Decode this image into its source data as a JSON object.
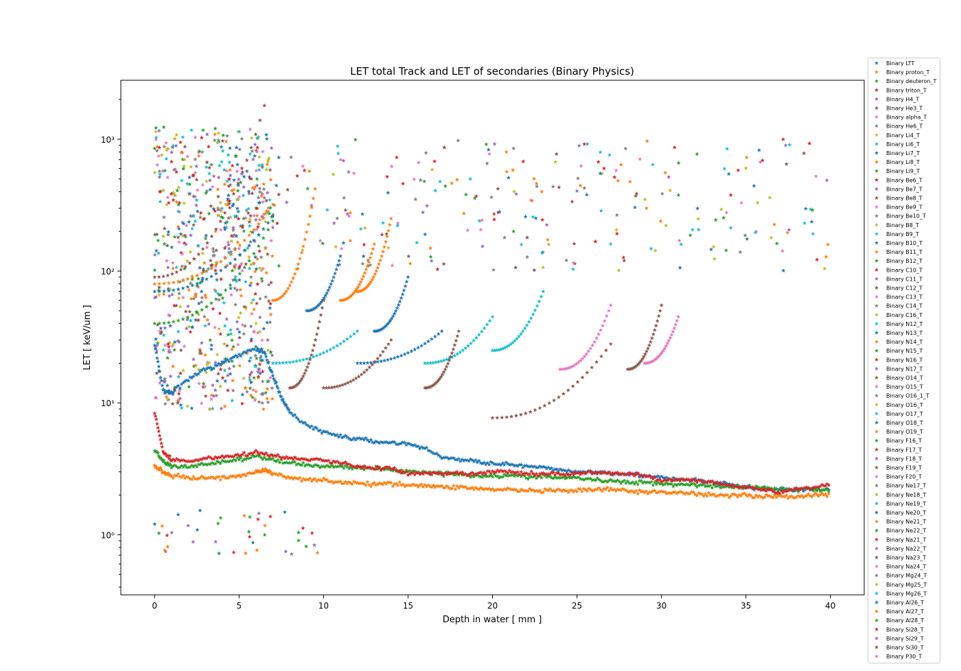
{
  "chart_data": {
    "type": "scatter",
    "title": "LET total Track and LET of secondaries (Binary Physics)",
    "xlabel": "Depth in water [ mm ]",
    "ylabel": "LET [ keV/um ]",
    "xlim": [
      -2,
      42
    ],
    "ylim": [
      0.35,
      2800
    ],
    "yscale": "log",
    "grid": false,
    "legend_position": "outside-right",
    "marker": "star",
    "x_ticks": [
      0,
      5,
      10,
      15,
      20,
      25,
      30,
      35,
      40
    ],
    "x_tick_labels": [
      "0",
      "5",
      "10",
      "15",
      "20",
      "25",
      "30",
      "35",
      "40"
    ],
    "y_ticks": [
      1,
      10,
      100,
      1000
    ],
    "y_tick_labels": [
      "10⁰",
      "10¹",
      "10²",
      "10³"
    ],
    "palette": [
      "#1f77b4",
      "#ff7f0e",
      "#2ca02c",
      "#d62728",
      "#9467bd",
      "#8c564b",
      "#e377c2",
      "#7f7f7f",
      "#bcbd22",
      "#17becf"
    ],
    "legend_entries": [
      "Binary LTT",
      "Binary proton_T",
      "Binary deuteron_T",
      "Binary triton_T",
      "Binary H4_T",
      "Binary He3_T",
      "Binary alpha_T",
      "Binary He6_T",
      "Binary Li4_T",
      "Binary Li6_T",
      "Binary Li7_T",
      "Binary Li8_T",
      "Binary Li9_T",
      "Binary Be6_T",
      "Binary Be7_T",
      "Binary Be8_T",
      "Binary Be9_T",
      "Binary Be10_T",
      "Binary B8_T",
      "Binary B9_T",
      "Binary B10_T",
      "Binary B11_T",
      "Binary B12_T",
      "Binary C10_T",
      "Binary C11_T",
      "Binary C12_T",
      "Binary C13_T",
      "Binary C14_T",
      "Binary C16_T",
      "Binary N12_T",
      "Binary N13_T",
      "Binary N14_T",
      "Binary N15_T",
      "Binary N16_T",
      "Binary N17_T",
      "Binary O14_T",
      "Binary O15_T",
      "Binary O16_1_T",
      "Binary O16_T",
      "Binary O17_T",
      "Binary O18_T",
      "Binary O19_T",
      "Binary F16_T",
      "Binary F17_T",
      "Binary F18_T",
      "Binary F19_T",
      "Binary F20_T",
      "Binary Ne17_T",
      "Binary Ne18_T",
      "Binary Ne19_T",
      "Binary Ne20_T",
      "Binary Ne21_T",
      "Binary Ne22_T",
      "Binary Na21_T",
      "Binary Na22_T",
      "Binary Na23_T",
      "Binary Na24_T",
      "Binary Mg24_T",
      "Binary Mg25_T",
      "Binary Mg26_T",
      "Binary Al26_T",
      "Binary Al27_T",
      "Binary Al28_T",
      "Binary Si28_T",
      "Binary Si29_T",
      "Binary Si30_T",
      "Binary P30_T"
    ],
    "series": [
      {
        "name": "Binary LTT",
        "x": [
          0,
          0.5,
          1,
          2,
          3,
          4,
          5,
          6,
          6.5,
          7,
          7.5,
          8,
          9,
          10,
          11,
          12,
          13,
          14,
          15,
          16,
          17,
          18,
          19,
          20,
          21,
          22,
          23,
          24,
          25,
          26,
          27,
          28,
          29,
          30,
          31,
          32,
          33,
          34,
          35,
          36,
          37,
          38,
          39,
          40
        ],
        "y": [
          28,
          12.5,
          12,
          15,
          18,
          20,
          23,
          26,
          24,
          16,
          11,
          8.5,
          6.8,
          6.0,
          5.6,
          5.3,
          5.1,
          5.0,
          4.9,
          4.5,
          3.9,
          3.7,
          3.6,
          3.5,
          3.4,
          3.3,
          3.2,
          3.1,
          3.0,
          3.0,
          2.95,
          2.9,
          2.8,
          2.7,
          2.6,
          2.6,
          2.5,
          2.4,
          2.3,
          2.2,
          2.2,
          2.2,
          2.2,
          2.2
        ]
      },
      {
        "name": "Binary proton_T",
        "x": [
          0,
          0.5,
          1,
          2,
          3,
          4,
          5,
          6,
          6.5,
          7,
          8,
          9,
          10,
          11,
          12,
          13,
          14,
          15,
          16,
          17,
          18,
          19,
          20,
          21,
          22,
          23,
          24,
          25,
          26,
          27,
          28,
          29,
          30,
          31,
          32,
          33,
          34,
          35,
          36,
          37,
          38,
          39,
          40
        ],
        "y": [
          3.3,
          3.0,
          2.8,
          2.7,
          2.7,
          2.7,
          2.8,
          3.0,
          3.1,
          2.9,
          2.7,
          2.65,
          2.6,
          2.5,
          2.45,
          2.4,
          2.45,
          2.4,
          2.35,
          2.3,
          2.3,
          2.25,
          2.2,
          2.2,
          2.15,
          2.15,
          2.15,
          2.15,
          2.2,
          2.2,
          2.15,
          2.1,
          2.1,
          2.1,
          2.05,
          2.0,
          2.0,
          2.0,
          1.95,
          1.95,
          1.95,
          2.0,
          2.0
        ]
      },
      {
        "name": "Binary deuteron_T",
        "x": [
          0,
          0.5,
          1,
          2,
          3,
          4,
          5,
          6,
          7,
          8,
          9,
          10,
          11,
          12,
          13,
          14,
          15,
          16,
          17,
          18,
          19,
          20,
          21,
          22,
          23,
          24,
          25,
          26,
          27,
          28,
          29,
          30,
          31,
          32,
          33,
          34,
          35,
          36,
          37,
          38,
          39,
          40
        ],
        "y": [
          4.4,
          3.6,
          3.3,
          3.3,
          3.4,
          3.6,
          3.7,
          3.9,
          3.7,
          3.5,
          3.4,
          3.3,
          3.3,
          3.2,
          3.2,
          3.1,
          3.0,
          3.0,
          2.9,
          2.9,
          2.8,
          2.8,
          2.8,
          2.75,
          2.75,
          2.7,
          2.7,
          2.6,
          2.55,
          2.5,
          2.5,
          2.45,
          2.4,
          2.4,
          2.35,
          2.3,
          2.3,
          2.3,
          2.2,
          2.2,
          2.2,
          2.2
        ]
      },
      {
        "name": "Binary triton_T",
        "x": [
          0,
          0.5,
          1,
          2,
          3,
          4,
          5,
          6,
          7,
          8,
          9,
          10,
          11,
          12,
          13,
          14,
          15,
          16,
          17,
          18,
          19,
          20,
          21,
          22,
          23,
          24,
          25,
          26,
          27,
          28,
          29,
          30,
          31,
          32,
          33,
          34,
          35,
          36,
          37,
          38,
          39,
          40
        ],
        "y": [
          8.5,
          4.3,
          3.7,
          3.6,
          3.8,
          3.9,
          4.0,
          4.2,
          4.0,
          3.8,
          3.7,
          3.7,
          3.5,
          3.3,
          3.2,
          3.2,
          2.9,
          2.9,
          2.9,
          2.9,
          2.9,
          3.0,
          3.0,
          2.9,
          2.9,
          2.9,
          2.9,
          3.0,
          2.9,
          2.9,
          2.8,
          2.6,
          2.6,
          2.6,
          2.5,
          2.4,
          2.3,
          2.2,
          2.1,
          2.2,
          2.3,
          2.4
        ]
      }
    ],
    "point_cloud_seed": 7
  }
}
